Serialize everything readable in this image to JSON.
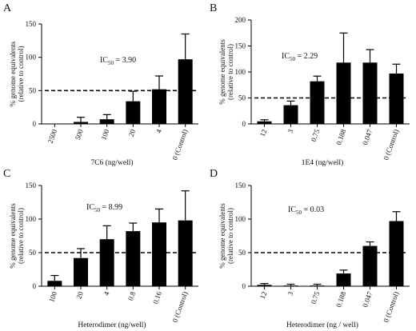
{
  "chart_data": [
    {
      "panel": "A",
      "type": "bar",
      "ylabel_line1": "% genome equivalents",
      "ylabel_line2": "(relative to control)",
      "xlabel": "7C6 (ng/well)",
      "ic50": "3.90",
      "categories": [
        "2500",
        "500",
        "100",
        "20",
        "4",
        "0 (Control)"
      ],
      "values": [
        0,
        3,
        7,
        34,
        52,
        97
      ],
      "errors": [
        0,
        7,
        7,
        15,
        20,
        38
      ],
      "ylim": [
        0,
        150
      ],
      "yticks": [
        0,
        50,
        100,
        150
      ],
      "reference_line": 50
    },
    {
      "panel": "B",
      "type": "bar",
      "ylabel_line1": "% genome equivalents",
      "ylabel_line2": "(relative to control)",
      "xlabel": "1E4 (ng/well)",
      "ic50": "2.29",
      "categories": [
        "12",
        "3",
        "0.75",
        "0.188",
        "0.047",
        "0 (Control)"
      ],
      "values": [
        5,
        36,
        82,
        118,
        118,
        97
      ],
      "errors": [
        3,
        8,
        10,
        57,
        25,
        18
      ],
      "ylim": [
        0,
        200
      ],
      "yticks": [
        0,
        50,
        100,
        150,
        200
      ],
      "reference_line": 50
    },
    {
      "panel": "C",
      "type": "bar",
      "ylabel_line1": "% genome equivalents",
      "ylabel_line2": "(relative to control)",
      "xlabel": "Heterodimer (ng/well)",
      "ic50": "8.99",
      "categories": [
        "100",
        "20",
        "4",
        "0.8",
        "0.16",
        "0 (Control)"
      ],
      "values": [
        8,
        42,
        70,
        82,
        95,
        98
      ],
      "errors": [
        8,
        14,
        20,
        12,
        20,
        44
      ],
      "ylim": [
        0,
        150
      ],
      "yticks": [
        0,
        50,
        100,
        150
      ],
      "reference_line": 50
    },
    {
      "panel": "D",
      "type": "bar",
      "ylabel_line1": "% genome equivalents",
      "ylabel_line2": "(relative to control)",
      "xlabel": "Heterodimer (ng / well)",
      "ic50": "0.03",
      "categories": [
        "12",
        "3",
        "0.75",
        "0.188",
        "0.047",
        "0 (Control)"
      ],
      "values": [
        2,
        1,
        1,
        19,
        60,
        97
      ],
      "errors": [
        2,
        2,
        2,
        5,
        6,
        14
      ],
      "ylim": [
        0,
        150
      ],
      "yticks": [
        0,
        50,
        100,
        150
      ],
      "reference_line": 50
    }
  ]
}
